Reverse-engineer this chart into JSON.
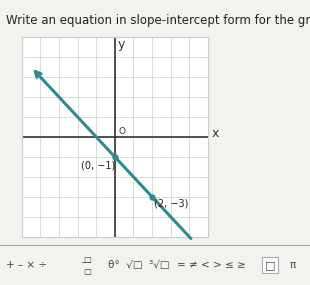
{
  "title": "Write an equation in slope-intercept form for the graph shown.",
  "title_fontsize": 8.5,
  "grid_color": "#cccccc",
  "axis_color": "#333333",
  "line_color": "#2e8b8b",
  "line_width": 2.2,
  "slope": -1,
  "intercept": -1,
  "point1": [
    0,
    -1
  ],
  "point2": [
    2,
    -3
  ],
  "point1_label": "(0, −1)",
  "point2_label": "(2, −3)",
  "xlim": [
    -5,
    5
  ],
  "ylim": [
    -5,
    5
  ],
  "x_line_start": -4.5,
  "x_line_end": 4.2,
  "bg_color": "#f2f2ee",
  "plot_bg": "#ffffff",
  "toolbar_bg": "#e0e0dc",
  "label_fontsize": 7.0,
  "axis_label_fontsize": 9
}
